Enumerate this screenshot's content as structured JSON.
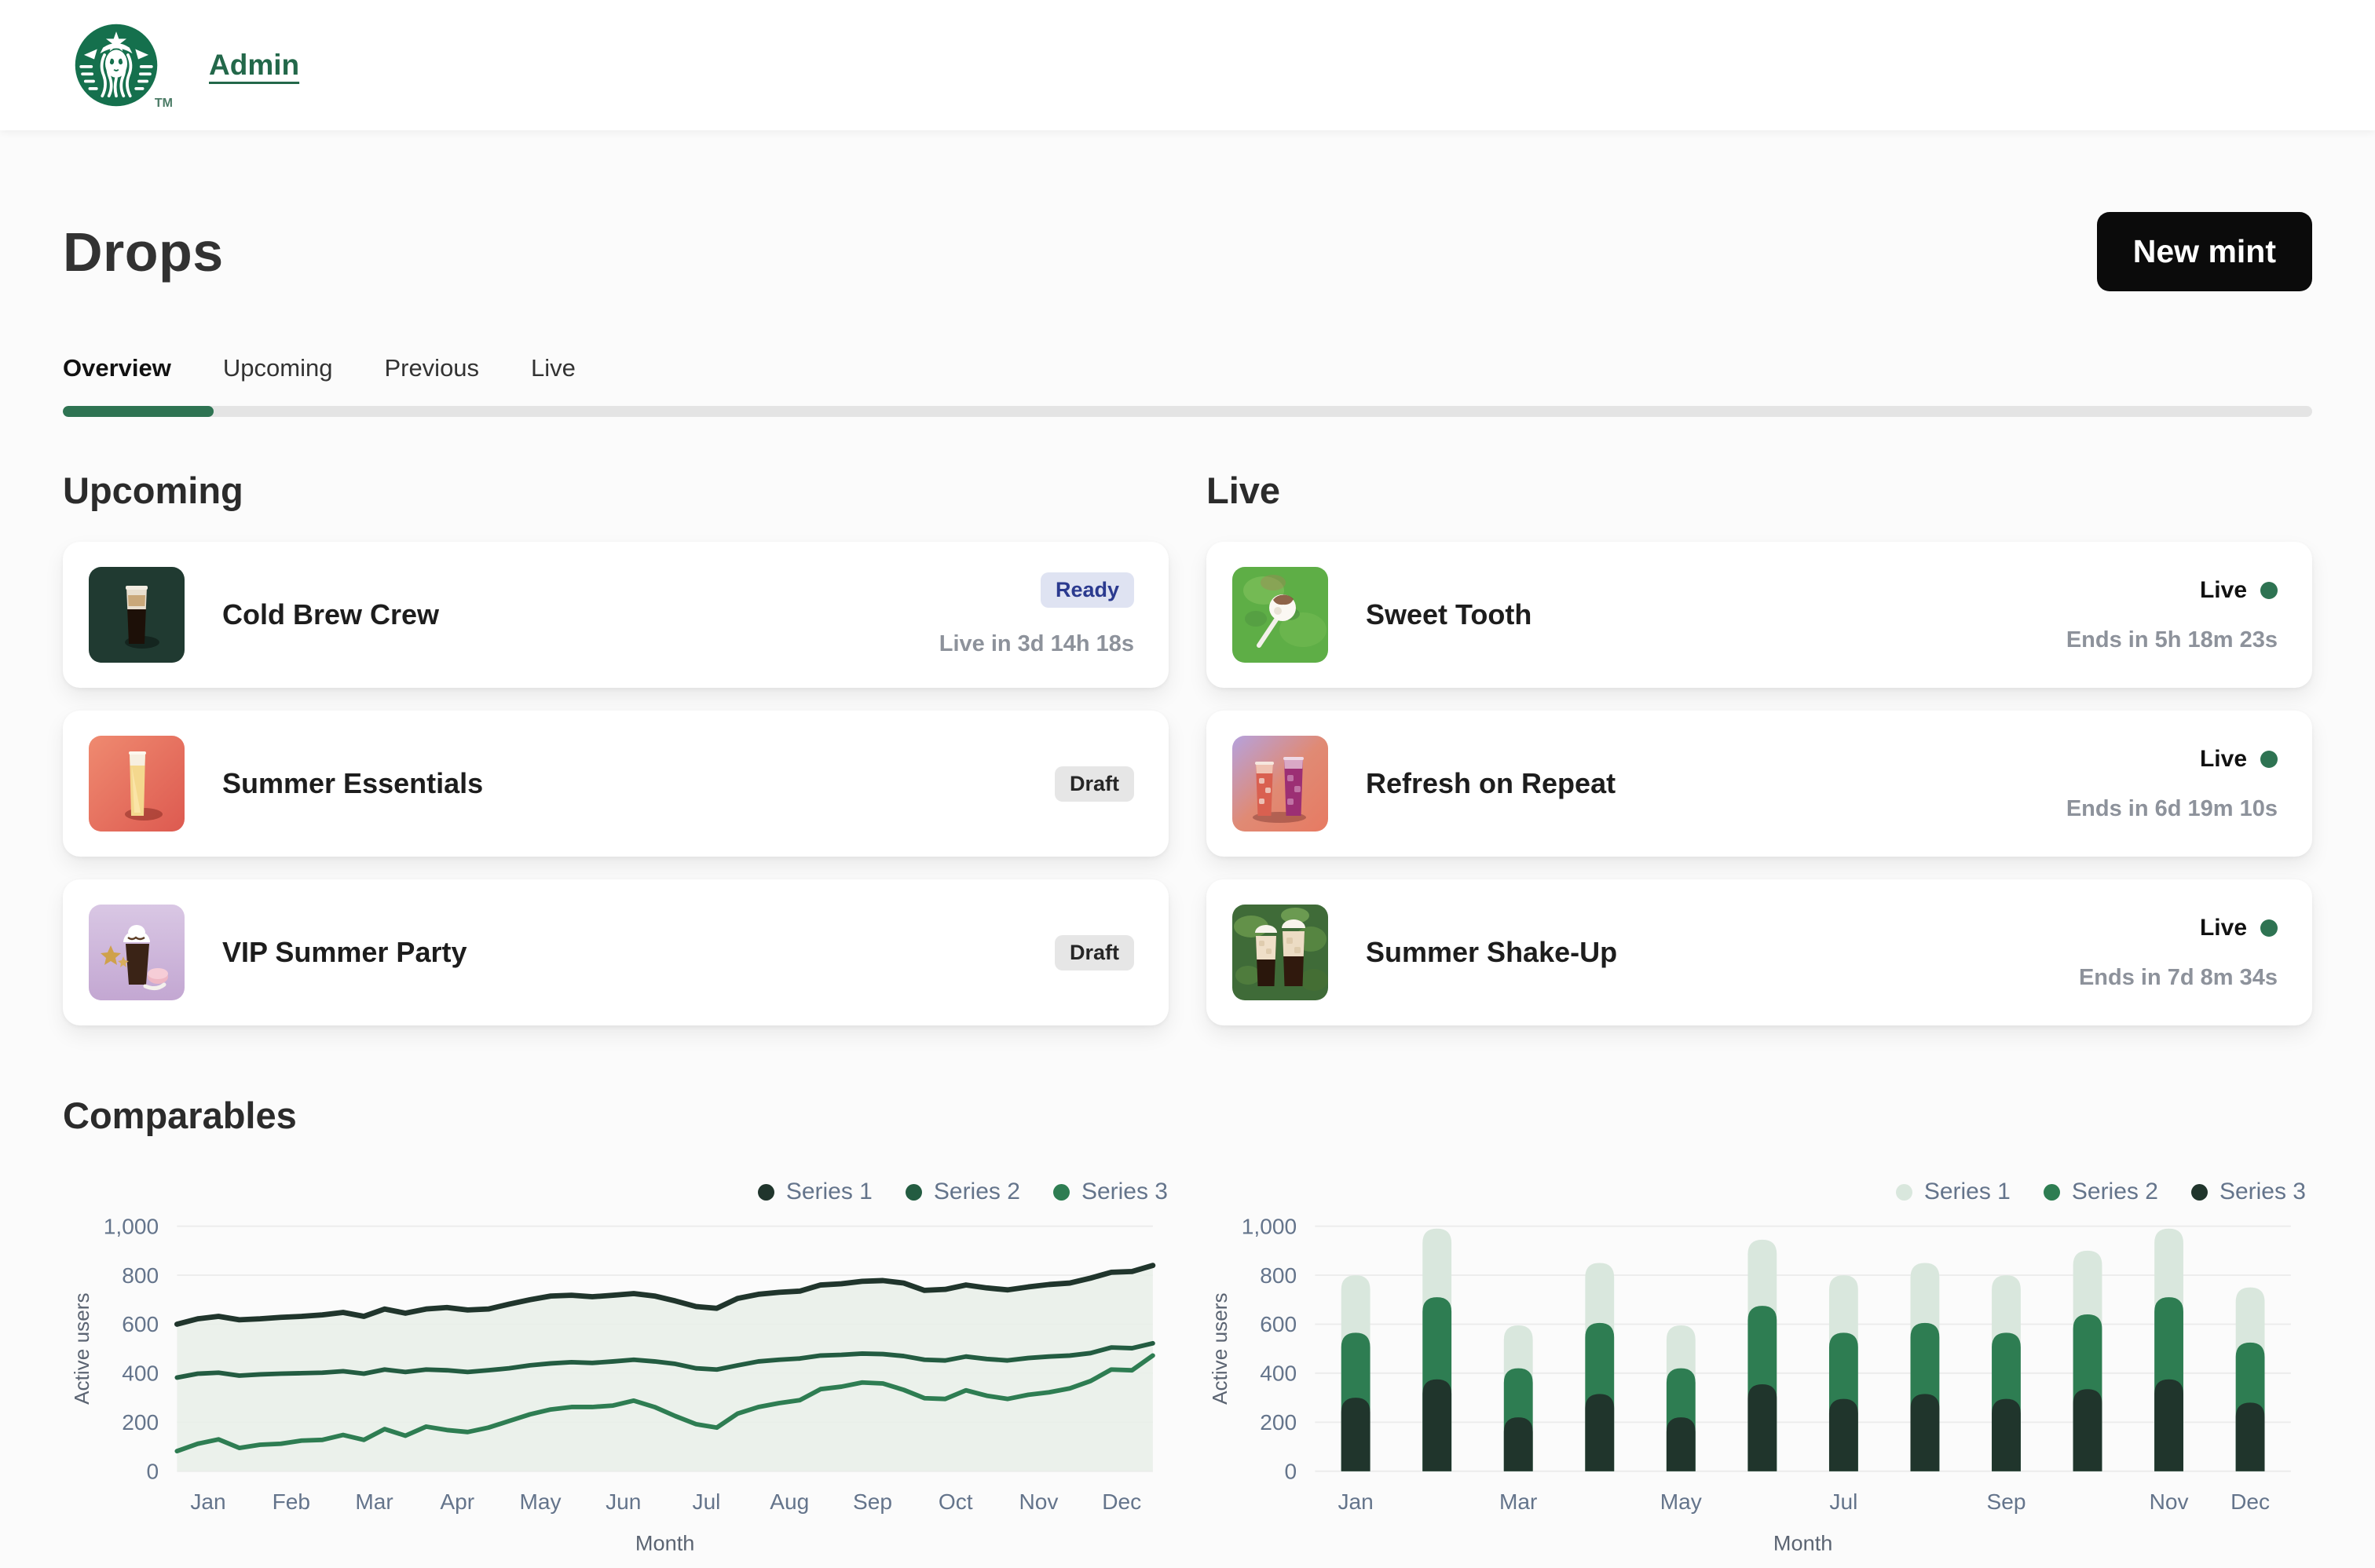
{
  "header": {
    "brand": "Starbucks",
    "admin_label": "Admin",
    "trademark": "TM"
  },
  "page": {
    "title": "Drops",
    "new_mint_label": "New mint"
  },
  "tabs": [
    {
      "label": "Overview",
      "active": true
    },
    {
      "label": "Upcoming",
      "active": false
    },
    {
      "label": "Previous",
      "active": false
    },
    {
      "label": "Live",
      "active": false
    }
  ],
  "sections": {
    "upcoming": {
      "heading": "Upcoming",
      "cards": [
        {
          "title": "Cold Brew Crew",
          "badge": "Ready",
          "countdown": "Live in 3d 14h 18s"
        },
        {
          "title": "Summer Essentials",
          "badge": "Draft",
          "countdown": ""
        },
        {
          "title": "VIP Summer Party",
          "badge": "Draft",
          "countdown": ""
        }
      ]
    },
    "live": {
      "heading": "Live",
      "cards": [
        {
          "title": "Sweet Tooth",
          "status": "Live",
          "countdown": "Ends in 5h 18m 23s"
        },
        {
          "title": "Refresh on Repeat",
          "status": "Live",
          "countdown": "Ends in 6d 19m 10s"
        },
        {
          "title": "Summer Shake-Up",
          "status": "Live",
          "countdown": "Ends in 7d 8m 34s"
        }
      ]
    },
    "comparables": {
      "heading": "Comparables"
    }
  },
  "colors": {
    "accent_green": "#2e7352",
    "logo_green": "#15704d",
    "ready_badge_bg": "#dfe3f2",
    "ready_badge_text": "#2b3a8f",
    "draft_badge_bg": "#e6e6e6",
    "slate_axis_text": "#64748b",
    "grid_line": "#ececec"
  },
  "chart_data": [
    {
      "type": "area",
      "title": "Comparables - line",
      "xlabel": "Month",
      "ylabel": "Active users",
      "ylim": [
        0,
        1000
      ],
      "yticks": [
        0,
        200,
        400,
        600,
        800,
        1000
      ],
      "grid": true,
      "legend_position": "top-right",
      "x_months": [
        "Jan",
        "Feb",
        "Mar",
        "Apr",
        "May",
        "Jun",
        "Jul",
        "Aug",
        "Sep",
        "Oct",
        "Nov",
        "Dec"
      ],
      "points_per_month": 4,
      "area_fill_color": "#e9efe9",
      "series": [
        {
          "name": "Series 1",
          "color": "#20352c",
          "values": [
            600,
            622,
            632,
            618,
            622,
            628,
            632,
            638,
            648,
            632,
            662,
            645,
            662,
            668,
            658,
            662,
            682,
            700,
            715,
            718,
            712,
            718,
            725,
            715,
            695,
            672,
            665,
            705,
            722,
            730,
            735,
            760,
            765,
            775,
            778,
            768,
            738,
            742,
            760,
            748,
            740,
            752,
            762,
            768,
            788,
            812,
            815,
            840
          ]
        },
        {
          "name": "Series 2",
          "color": "#235c41",
          "values": [
            382,
            398,
            402,
            390,
            395,
            398,
            400,
            402,
            408,
            398,
            415,
            405,
            415,
            412,
            405,
            412,
            420,
            432,
            440,
            445,
            442,
            448,
            455,
            448,
            438,
            420,
            415,
            432,
            448,
            455,
            460,
            472,
            475,
            480,
            478,
            470,
            455,
            452,
            468,
            458,
            452,
            462,
            468,
            472,
            482,
            505,
            502,
            522
          ]
        },
        {
          "name": "Series 3",
          "color": "#2e7d52",
          "values": [
            82,
            112,
            130,
            95,
            108,
            112,
            125,
            128,
            148,
            128,
            172,
            145,
            182,
            168,
            160,
            178,
            205,
            232,
            252,
            262,
            262,
            268,
            288,
            262,
            225,
            192,
            178,
            235,
            262,
            278,
            290,
            335,
            345,
            362,
            358,
            332,
            298,
            295,
            330,
            308,
            295,
            312,
            322,
            338,
            368,
            415,
            412,
            472
          ]
        }
      ]
    },
    {
      "type": "bar",
      "title": "Comparables - stacked bars",
      "xlabel": "Month",
      "ylabel": "Active users",
      "ylim": [
        0,
        1000
      ],
      "yticks": [
        0,
        200,
        400,
        600,
        800,
        1000
      ],
      "grid": true,
      "legend_position": "top-right",
      "categories": [
        "Jan",
        "Feb",
        "Mar",
        "Apr",
        "May",
        "Jun",
        "Jul",
        "Aug",
        "Sep",
        "Oct",
        "Nov",
        "Dec"
      ],
      "x_tick_indices": [
        0,
        2,
        4,
        6,
        8,
        10,
        11
      ],
      "stack_bottom_to_top": [
        "Series 3",
        "Series 2",
        "Series 1"
      ],
      "series": [
        {
          "name": "Series 1",
          "color": "#d9e7dd",
          "values": [
            235,
            280,
            175,
            245,
            175,
            270,
            235,
            245,
            235,
            260,
            280,
            225
          ]
        },
        {
          "name": "Series 2",
          "color": "#2e7d52",
          "values": [
            265,
            335,
            200,
            290,
            200,
            320,
            270,
            290,
            270,
            305,
            335,
            245
          ]
        },
        {
          "name": "Series 3",
          "color": "#20352c",
          "values": [
            300,
            375,
            220,
            315,
            220,
            355,
            295,
            315,
            295,
            335,
            375,
            280
          ]
        }
      ]
    }
  ]
}
